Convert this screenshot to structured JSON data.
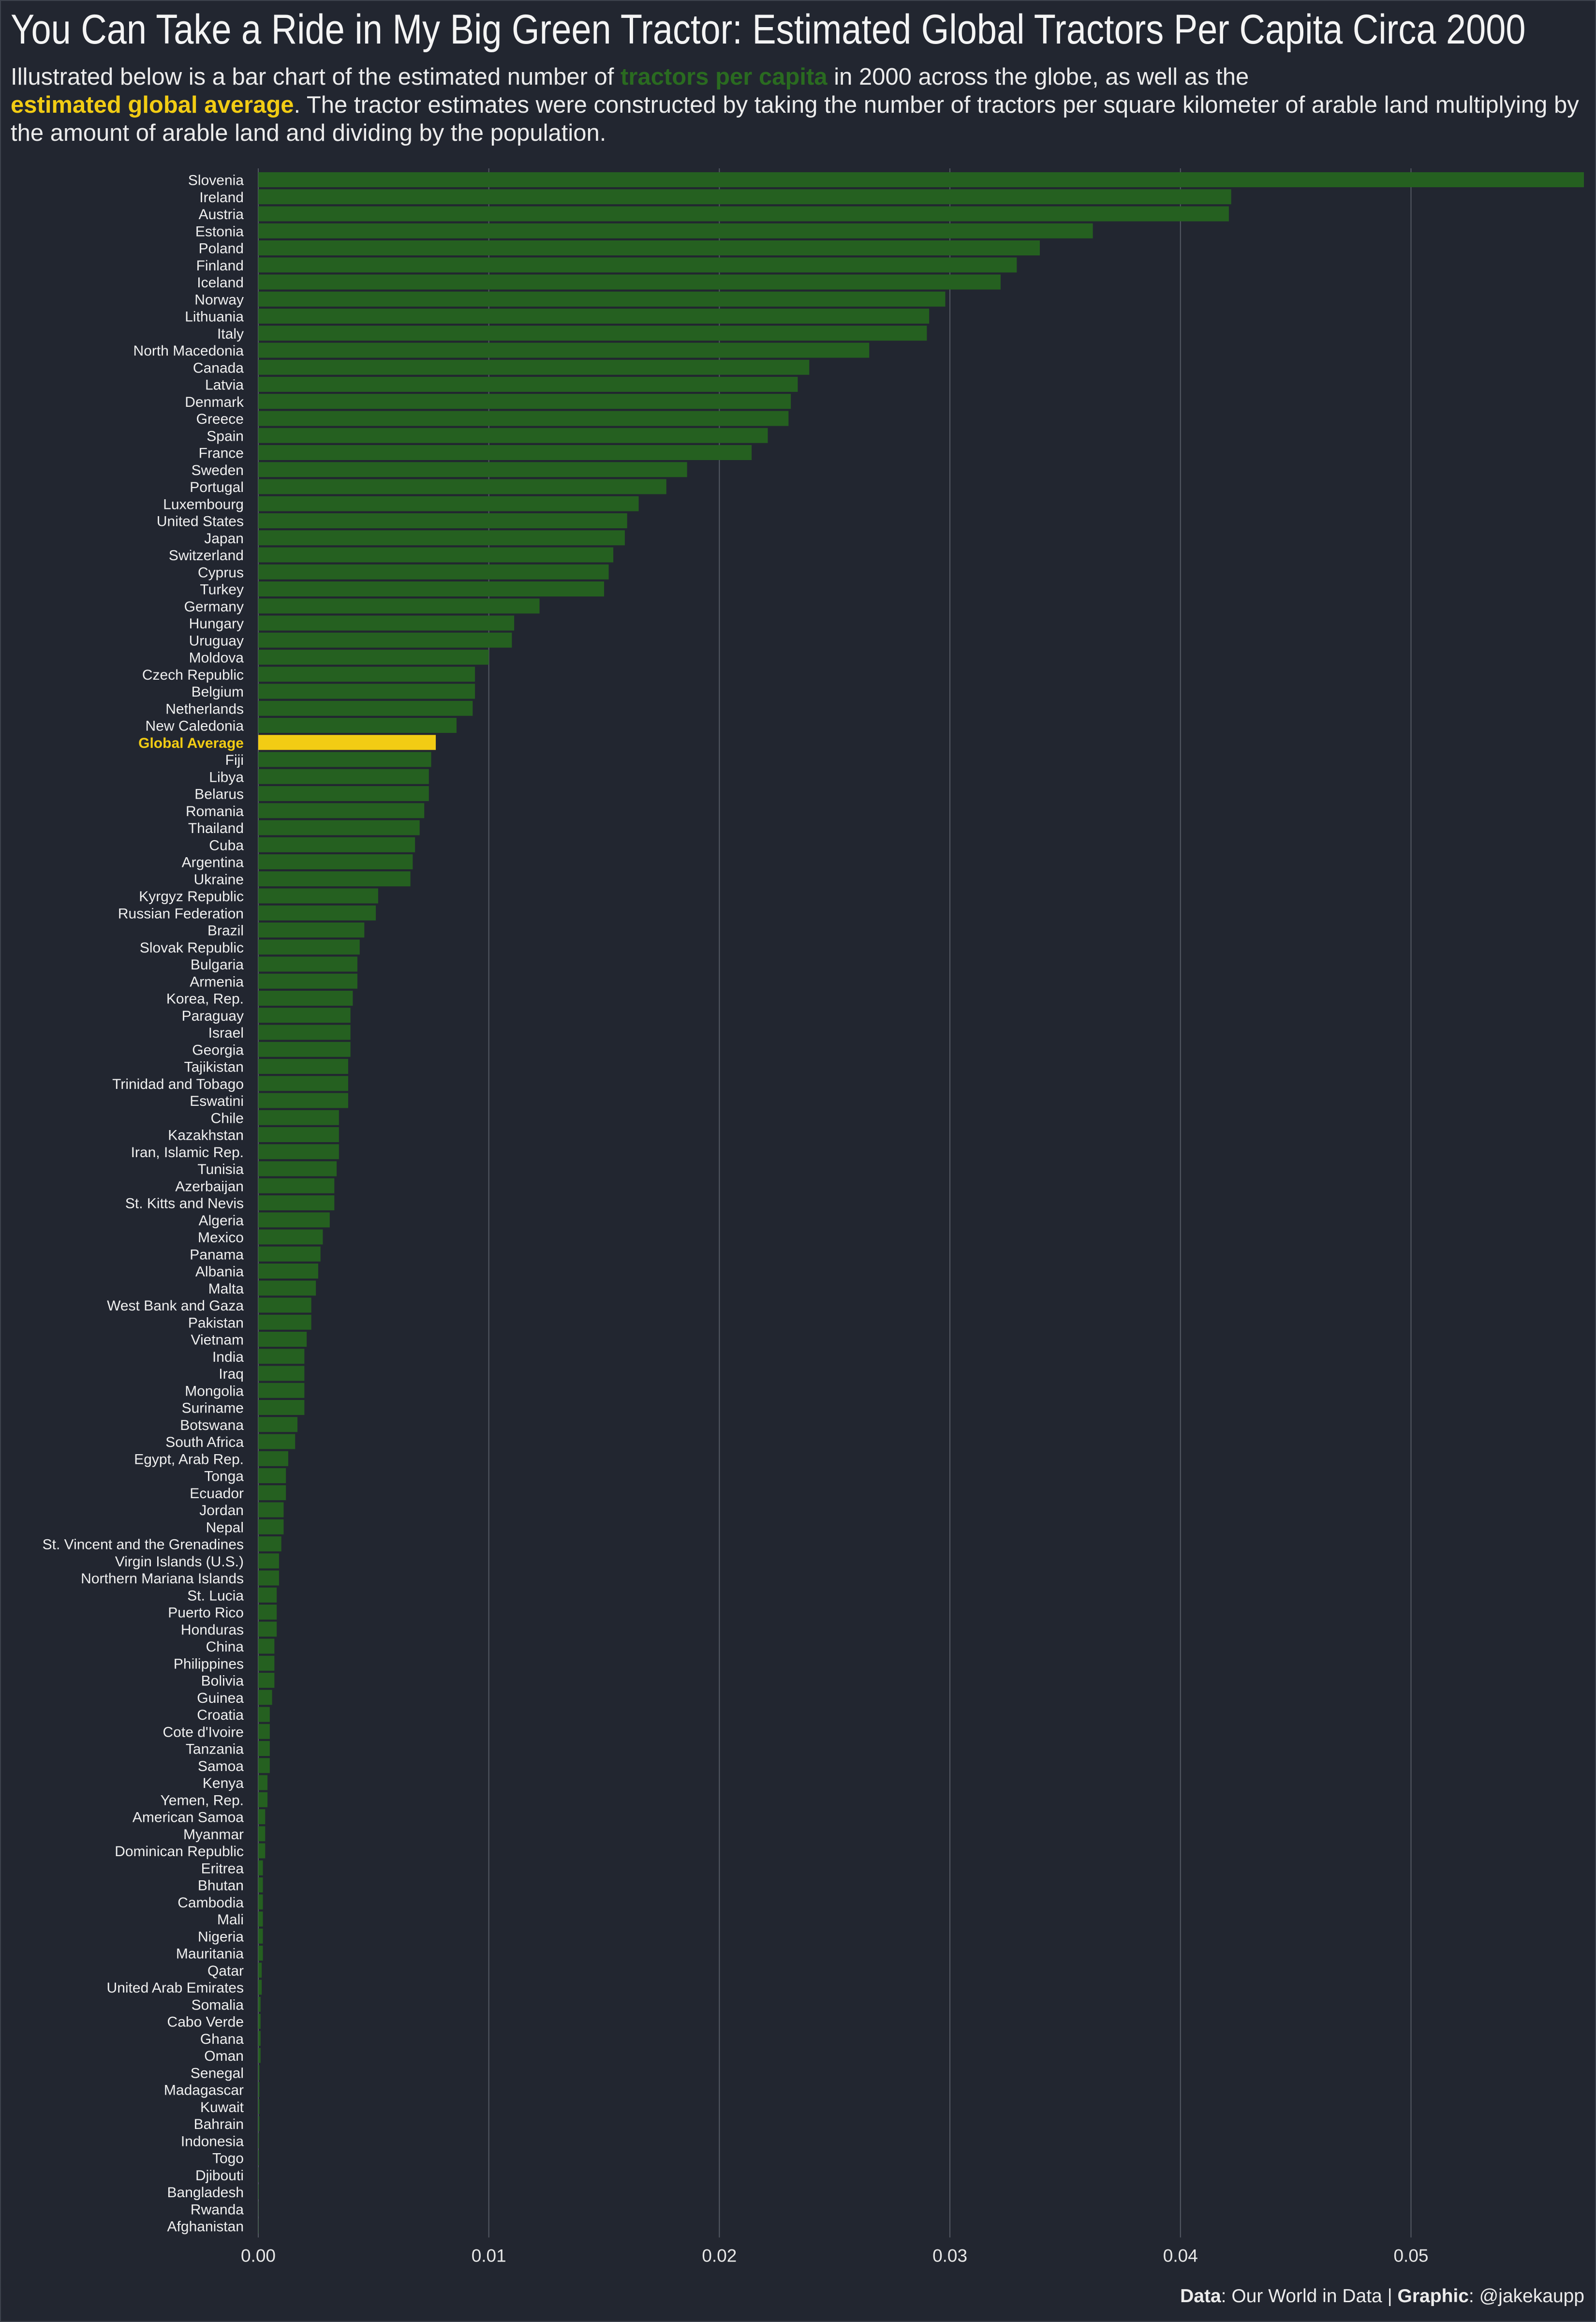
{
  "header": {
    "title": "You Can Take a Ride in My Big Green Tractor: Estimated Global Tractors Per Capita Circa 2000",
    "subtitle_part1": "Illustrated below is a bar chart of the estimated number of ",
    "subtitle_highlight_green": "tractors per capita",
    "subtitle_part2": " in 2000 across the globe, as well as the",
    "subtitle_highlight_yellow": "estimated global average",
    "subtitle_part3": ". The tractor estimates were constructed by taking the number of tractors per square kilometer of arable land multiplying by the amount of arable land and dividing by the population."
  },
  "caption": {
    "data_label": "Data",
    "data_value": ": Our World in Data | ",
    "graphic_label": "Graphic",
    "graphic_value": ": @jakekaupp"
  },
  "colors": {
    "background": "#222630",
    "bar": "#256020",
    "highlight": "#f2cc14",
    "gridline": "#555a64",
    "label": "#f0f0f0"
  },
  "chart_data": {
    "type": "bar",
    "orientation": "horizontal",
    "title": "",
    "xlabel": "",
    "ylabel": "",
    "xlim": [
      0,
      0.0575
    ],
    "x_ticks": [
      0,
      0.01,
      0.02,
      0.03,
      0.04,
      0.05
    ],
    "x_tick_labels": [
      "0.00",
      "0.01",
      "0.02",
      "0.03",
      "0.04",
      "0.05"
    ],
    "grid": "vertical",
    "highlight_category": "Global Average",
    "categories": [
      "Slovenia",
      "Ireland",
      "Austria",
      "Estonia",
      "Poland",
      "Finland",
      "Iceland",
      "Norway",
      "Lithuania",
      "Italy",
      "North Macedonia",
      "Canada",
      "Latvia",
      "Denmark",
      "Greece",
      "Spain",
      "France",
      "Sweden",
      "Portugal",
      "Luxembourg",
      "United States",
      "Japan",
      "Switzerland",
      "Cyprus",
      "Turkey",
      "Germany",
      "Hungary",
      "Uruguay",
      "Moldova",
      "Czech Republic",
      "Belgium",
      "Netherlands",
      "New Caledonia",
      "Global Average",
      "Fiji",
      "Libya",
      "Belarus",
      "Romania",
      "Thailand",
      "Cuba",
      "Argentina",
      "Ukraine",
      "Kyrgyz Republic",
      "Russian Federation",
      "Brazil",
      "Slovak Republic",
      "Bulgaria",
      "Armenia",
      "Korea, Rep.",
      "Paraguay",
      "Israel",
      "Georgia",
      "Tajikistan",
      "Trinidad and Tobago",
      "Eswatini",
      "Chile",
      "Kazakhstan",
      "Iran, Islamic Rep.",
      "Tunisia",
      "Azerbaijan",
      "St. Kitts and Nevis",
      "Algeria",
      "Mexico",
      "Panama",
      "Albania",
      "Malta",
      "West Bank and Gaza",
      "Pakistan",
      "Vietnam",
      "India",
      "Iraq",
      "Mongolia",
      "Suriname",
      "Botswana",
      "South Africa",
      "Egypt, Arab Rep.",
      "Tonga",
      "Ecuador",
      "Jordan",
      "Nepal",
      "St. Vincent and the Grenadines",
      "Virgin Islands (U.S.)",
      "Northern Mariana Islands",
      "St. Lucia",
      "Puerto Rico",
      "Honduras",
      "China",
      "Philippines",
      "Bolivia",
      "Guinea",
      "Croatia",
      "Cote d'Ivoire",
      "Tanzania",
      "Samoa",
      "Kenya",
      "Yemen, Rep.",
      "American Samoa",
      "Myanmar",
      "Dominican Republic",
      "Eritrea",
      "Bhutan",
      "Cambodia",
      "Mali",
      "Nigeria",
      "Mauritania",
      "Qatar",
      "United Arab Emirates",
      "Somalia",
      "Cabo Verde",
      "Ghana",
      "Oman",
      "Senegal",
      "Madagascar",
      "Kuwait",
      "Bahrain",
      "Indonesia",
      "Togo",
      "Djibouti",
      "Bangladesh",
      "Rwanda",
      "Afghanistan"
    ],
    "values": [
      0.0575,
      0.0422,
      0.0421,
      0.0362,
      0.0339,
      0.0329,
      0.0322,
      0.0298,
      0.0291,
      0.029,
      0.0265,
      0.0239,
      0.0234,
      0.0231,
      0.023,
      0.0221,
      0.0214,
      0.0186,
      0.0177,
      0.0165,
      0.016,
      0.0159,
      0.0154,
      0.0152,
      0.015,
      0.0122,
      0.0111,
      0.011,
      0.01,
      0.0094,
      0.0094,
      0.0093,
      0.0086,
      0.0077,
      0.0075,
      0.0074,
      0.0074,
      0.0072,
      0.007,
      0.0068,
      0.0067,
      0.0066,
      0.0052,
      0.0051,
      0.0046,
      0.0044,
      0.0043,
      0.0043,
      0.0041,
      0.004,
      0.004,
      0.004,
      0.0039,
      0.0039,
      0.0039,
      0.0035,
      0.0035,
      0.0035,
      0.0034,
      0.0033,
      0.0033,
      0.0031,
      0.0028,
      0.0027,
      0.0026,
      0.0025,
      0.0023,
      0.0023,
      0.0021,
      0.002,
      0.002,
      0.002,
      0.002,
      0.0017,
      0.0016,
      0.0013,
      0.0012,
      0.0012,
      0.0011,
      0.0011,
      0.001,
      0.0009,
      0.0009,
      0.0008,
      0.0008,
      0.0008,
      0.0007,
      0.0007,
      0.0007,
      0.0006,
      0.0005,
      0.0005,
      0.0005,
      0.0005,
      0.0004,
      0.0004,
      0.0003,
      0.0003,
      0.0003,
      0.0002,
      0.0002,
      0.0002,
      0.0002,
      0.0002,
      0.0002,
      0.00015,
      0.00015,
      0.0001,
      0.0001,
      0.0001,
      0.0001,
      5e-05,
      5e-05,
      5e-05,
      5e-05,
      3e-05,
      3e-05,
      2e-05,
      2e-05,
      1e-05,
      1e-05
    ]
  }
}
